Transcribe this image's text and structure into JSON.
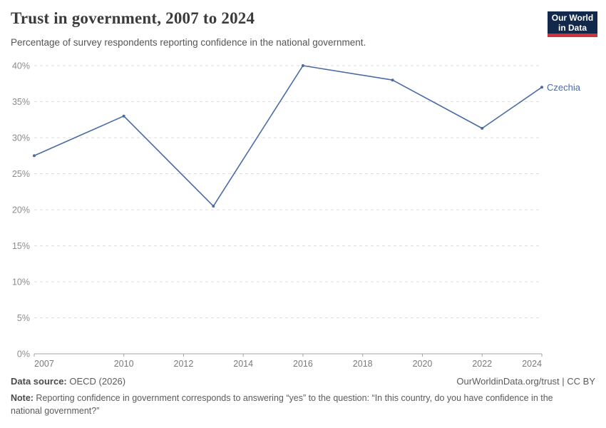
{
  "header": {
    "title": "Trust in government, 2007 to 2024",
    "subtitle": "Percentage of survey respondents reporting confidence in the national government.",
    "logo": {
      "line1": "Our World",
      "line2": "in Data",
      "bg_color": "#12294b",
      "accent_color": "#d0343a"
    }
  },
  "chart_data": {
    "type": "line",
    "title": "Trust in government, 2007 to 2024",
    "x": [
      2007,
      2010,
      2013,
      2016,
      2019,
      2022,
      2024
    ],
    "series": [
      {
        "name": "Czechia",
        "values": [
          27.5,
          33,
          20.5,
          40,
          38,
          31.3,
          37
        ],
        "color": "#4b6ba5"
      }
    ],
    "xlabel": "",
    "ylabel": "",
    "xlim": [
      2007,
      2024
    ],
    "ylim": [
      0,
      40
    ],
    "x_ticks": [
      2007,
      2010,
      2012,
      2014,
      2016,
      2018,
      2020,
      2022,
      2024
    ],
    "y_ticks": [
      0,
      5,
      10,
      15,
      20,
      25,
      30,
      35,
      40
    ],
    "y_tick_suffix": "%",
    "grid": "horizontal-dashed",
    "gridline_color": "#dedede",
    "axis_color": "#a3a3a3",
    "y_tick_label_color": "#8b8b8b",
    "x_tick_label_color": "#7a7a7a",
    "legend_position": "end-of-line-label"
  },
  "footer": {
    "datasource_label": "Data source:",
    "datasource_value": " OECD (2026)",
    "link": "OurWorldinData.org/trust | CC BY",
    "note_label": "Note:",
    "note_text": " Reporting confidence in government corresponds to answering “yes” to the question: “In this country, do you have confidence in the national government?”"
  }
}
